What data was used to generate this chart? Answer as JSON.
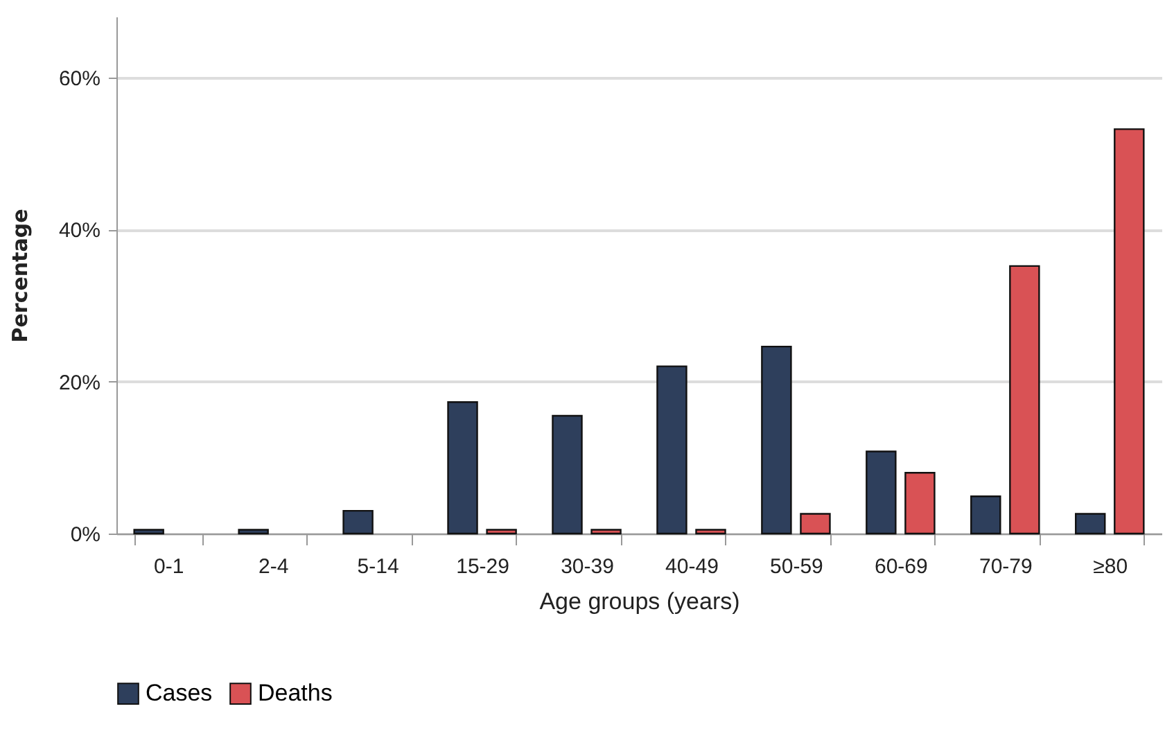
{
  "chart_data": {
    "type": "bar",
    "xlabel": "Age groups (years)",
    "ylabel": "Percentage",
    "categories": [
      "0-1",
      "2-4",
      "5-14",
      "15-29",
      "30-39",
      "40-49",
      "50-59",
      "60-69",
      "70-79",
      "≥80"
    ],
    "series": [
      {
        "name": "Cases",
        "color": "#2e3f5c",
        "values": [
          0.5,
          0.5,
          3,
          17.3,
          15.5,
          22,
          24.6,
          10.8,
          4.9,
          2.6
        ]
      },
      {
        "name": "Deaths",
        "color": "#d95255",
        "values": [
          null,
          null,
          null,
          0.5,
          0.5,
          0.5,
          2.6,
          8,
          35.2,
          53.2
        ]
      }
    ],
    "ylim": [
      0,
      68
    ],
    "yticks": [
      {
        "value": 0,
        "label": "0%"
      },
      {
        "value": 20,
        "label": "20%"
      },
      {
        "value": 40,
        "label": "40%"
      },
      {
        "value": 60,
        "label": "60%"
      }
    ],
    "grid": "y",
    "legend": "bottom"
  }
}
